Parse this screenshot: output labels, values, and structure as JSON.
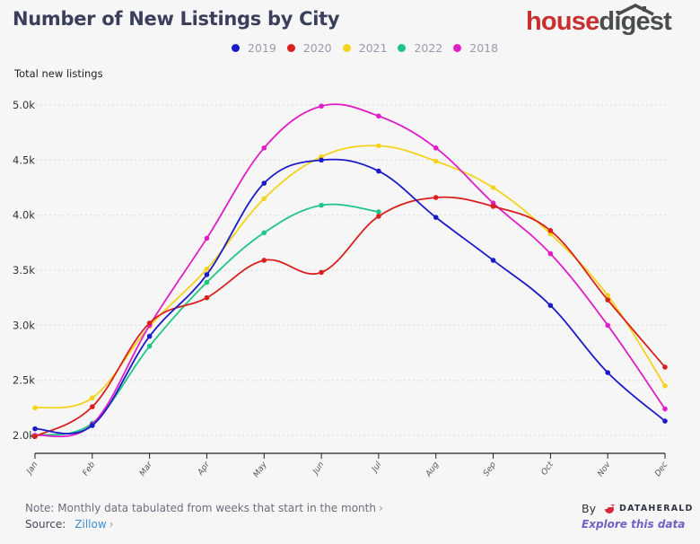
{
  "header": {
    "title": "Number of New Listings by City",
    "brand_part1": "house",
    "brand_part2": "digest"
  },
  "y_axis_title": "Total new listings",
  "footer": {
    "note": "Note: Monthly data tabulated from weeks that start in the month",
    "source_label": "Source:",
    "source_link": "Zillow",
    "by_label": "By",
    "dataherald": "DATAHERALD",
    "explore": "Explore this data"
  },
  "colors": {
    "2019": "#1a1ac8",
    "2020": "#d9201e",
    "2021": "#f5d21c",
    "2022": "#1fc585",
    "2018": "#e01ec8",
    "grid": "#dcdce6",
    "axis": "#222222"
  },
  "chart_data": {
    "type": "line",
    "title": "Number of New Listings by City",
    "xlabel": "",
    "ylabel": "Total new listings",
    "ylim": [
      2000,
      5000
    ],
    "yticks": [
      2000,
      2500,
      3000,
      3500,
      4000,
      4500,
      5000
    ],
    "ytick_labels": [
      "2.0k",
      "2.5k",
      "3.0k",
      "3.5k",
      "4.0k",
      "4.5k",
      "5.0k"
    ],
    "categories": [
      "Jan",
      "Feb",
      "Mar",
      "Apr",
      "May",
      "Jun",
      "Jul",
      "Aug",
      "Sep",
      "Oct",
      "Nov",
      "Dec"
    ],
    "grid": true,
    "legend_position": "top-center",
    "series": [
      {
        "name": "2019",
        "values": [
          2060,
          2090,
          2900,
          3460,
          4290,
          4500,
          4400,
          3980,
          3590,
          3180,
          2570,
          2130
        ]
      },
      {
        "name": "2020",
        "values": [
          1990,
          2260,
          3020,
          3250,
          3590,
          3480,
          3990,
          4160,
          4080,
          3860,
          3230,
          2620
        ]
      },
      {
        "name": "2021",
        "values": [
          2250,
          2340,
          2990,
          3510,
          4150,
          4530,
          4630,
          4490,
          4250,
          3830,
          3270,
          2450
        ]
      },
      {
        "name": "2022",
        "values": [
          2000,
          2110,
          2810,
          3390,
          3840,
          4090,
          4030,
          null,
          null,
          null,
          null,
          null
        ]
      },
      {
        "name": "2018",
        "values": [
          2000,
          2100,
          3000,
          3790,
          4610,
          4990,
          4900,
          4610,
          4110,
          3650,
          3000,
          2240
        ]
      }
    ]
  }
}
